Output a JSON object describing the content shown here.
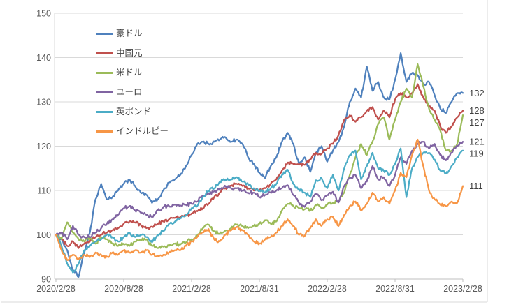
{
  "chart_data": {
    "type": "line",
    "title": "",
    "grid": "horizontal",
    "legend_position": "inside-top-left",
    "y_axis": {
      "min": 90,
      "max": 150,
      "step": 10,
      "tick_labels": [
        "90",
        "100",
        "110",
        "120",
        "130",
        "140",
        "150"
      ]
    },
    "x_axis": {
      "tick_labels": [
        "2020/2/28",
        "2020/8/28",
        "2021/2/28",
        "2021/8/31",
        "2022/2/28",
        "2022/8/31",
        "2023/2/28"
      ]
    },
    "sampling": {
      "points_per_series": 73,
      "interval": "semi-monthly",
      "range": "2020/2/28 - 2023/2/28"
    },
    "series": [
      {
        "key": "aud",
        "name": "豪ドル",
        "color": "#4F81BD",
        "end_label": "132",
        "values": [
          100,
          99,
          96.5,
          92,
          90.5,
          96,
          100.5,
          108,
          111.5,
          108,
          108.5,
          110,
          111.5,
          112.5,
          111,
          109.5,
          109,
          107.2,
          108,
          110,
          111.8,
          112.5,
          113.5,
          115.5,
          118,
          120.5,
          121,
          120.5,
          121,
          121.5,
          122,
          121,
          121.5,
          120.5,
          117.5,
          116,
          114,
          112.8,
          115.5,
          117.5,
          121,
          123,
          120.5,
          116,
          117.5,
          114.2,
          118.5,
          120,
          116.5,
          119,
          121,
          124.5,
          130,
          133,
          131,
          138,
          132.5,
          134.5,
          131,
          130.5,
          135,
          141,
          134.5,
          136.5,
          136,
          134,
          134.5,
          131.5,
          128.5,
          127.5,
          130,
          132,
          132
        ]
      },
      {
        "key": "cny",
        "name": "中国元",
        "color": "#C0504D",
        "end_label": "128",
        "values": [
          100,
          99,
          97.5,
          98.5,
          97,
          98,
          98.5,
          99.5,
          100,
          100.5,
          101,
          101.5,
          102.5,
          103,
          102.8,
          102.2,
          101.5,
          101.8,
          102.5,
          103,
          103.5,
          103.8,
          104,
          104.3,
          104.8,
          105.3,
          106,
          107,
          108.5,
          109.5,
          110.5,
          111,
          111.5,
          111,
          110.5,
          110,
          110,
          110.5,
          111.5,
          112.5,
          114.5,
          116.3,
          116,
          115.8,
          115.8,
          117,
          118.5,
          118.3,
          119.5,
          120.5,
          122.5,
          126,
          127,
          125.5,
          126.5,
          128,
          128.8,
          126,
          128,
          126.5,
          130.5,
          132,
          131,
          132,
          134,
          131,
          129,
          128,
          124.5,
          123,
          124.5,
          126.5,
          128
        ]
      },
      {
        "key": "usd",
        "name": "米ドル",
        "color": "#9BBB59",
        "end_label": "127",
        "values": [
          100,
          99,
          102.8,
          100.5,
          99,
          98.5,
          99.2,
          98,
          99.5,
          99,
          98,
          97.5,
          98,
          97.5,
          98.5,
          98.8,
          99,
          97.5,
          97,
          97.3,
          97.5,
          98,
          97.8,
          98.3,
          99,
          99.8,
          101.5,
          102.3,
          100.8,
          100.3,
          101,
          101.5,
          102.3,
          102,
          101.5,
          102,
          102.5,
          103.3,
          102.5,
          103,
          105.5,
          107,
          106.5,
          106,
          105.8,
          105.5,
          106.8,
          106,
          106.8,
          107.2,
          107.5,
          109.5,
          113.5,
          117.5,
          120.5,
          118,
          121,
          125,
          126.5,
          121.5,
          126,
          130,
          133,
          131,
          138.5,
          133.5,
          128.5,
          126,
          123.5,
          119,
          119,
          120.5,
          127
        ]
      },
      {
        "key": "eur",
        "name": "ユーロ",
        "color": "#8064A2",
        "end_label": "121",
        "values": [
          100,
          100.5,
          99,
          102,
          100,
          99.5,
          99.5,
          100.5,
          101.5,
          102.5,
          103.5,
          104.5,
          106,
          106.5,
          105.5,
          105,
          104.5,
          104,
          105.5,
          106.3,
          106.5,
          106.8,
          106.6,
          106.8,
          107,
          107.5,
          108.8,
          109.3,
          109.8,
          110.5,
          111,
          110.5,
          110.5,
          110,
          109.5,
          109.5,
          108.5,
          109,
          109.5,
          110,
          110.5,
          111.2,
          109,
          107.2,
          106.3,
          107.5,
          109.2,
          107.8,
          109,
          109.7,
          107.3,
          111,
          113,
          113.5,
          110.5,
          112,
          115.5,
          112.5,
          113,
          111,
          113.5,
          117.5,
          116,
          119,
          120.5,
          121,
          119.5,
          120.5,
          118,
          116.8,
          118.5,
          120,
          121
        ]
      },
      {
        "key": "gbp",
        "name": "英ポンド",
        "color": "#4BACC6",
        "end_label": "119",
        "values": [
          100,
          97.5,
          93.5,
          91.5,
          93.5,
          96.5,
          97.5,
          98.5,
          99,
          100,
          99.5,
          98.5,
          99.5,
          100.5,
          99.5,
          100,
          99.5,
          98.3,
          100,
          100.8,
          102.5,
          102.9,
          103.7,
          104.5,
          106,
          106.5,
          108.5,
          110,
          110.5,
          112,
          112.5,
          112.5,
          113,
          112,
          111.5,
          110.5,
          110,
          109.5,
          110.5,
          111.5,
          113.5,
          114.7,
          111.5,
          110.3,
          109.5,
          108.5,
          112.3,
          112.8,
          110.5,
          113.5,
          110,
          115,
          118,
          119,
          112.5,
          115.5,
          118.5,
          115,
          114.5,
          113.5,
          116,
          119.5,
          108.5,
          115,
          117.5,
          118.5,
          118.5,
          117,
          114.5,
          113.8,
          115.5,
          117.5,
          119
        ]
      },
      {
        "key": "inr",
        "name": "インドルピー",
        "color": "#F79646",
        "end_label": "111",
        "values": [
          100,
          96.5,
          94.3,
          95.5,
          94.5,
          95.5,
          95,
          96,
          95.5,
          95,
          96,
          95.5,
          96.5,
          96,
          96.5,
          96,
          96.5,
          95.5,
          95.3,
          95.5,
          96,
          96.5,
          96.5,
          97.5,
          98.5,
          99.5,
          100.5,
          101.3,
          99,
          98.5,
          100,
          101,
          101.8,
          101,
          100,
          98.5,
          98,
          99,
          99.5,
          100.5,
          102,
          103.5,
          102,
          100,
          99.7,
          101.5,
          103.5,
          102,
          103.5,
          104,
          102,
          104.5,
          106.5,
          107.5,
          105.5,
          107,
          109.5,
          107.5,
          108.5,
          107,
          110,
          114,
          113,
          118,
          121.5,
          115.5,
          110,
          108,
          106.8,
          106.5,
          107.5,
          107.2,
          111
        ]
      }
    ],
    "style": {
      "gridline_color": "#D9D9D9",
      "axis_line_color": "#BFBFBF",
      "axis_text_color": "#595959",
      "legend_text_color": "#404040",
      "end_label_color": "#404040",
      "background": "#FFFFFF"
    }
  }
}
